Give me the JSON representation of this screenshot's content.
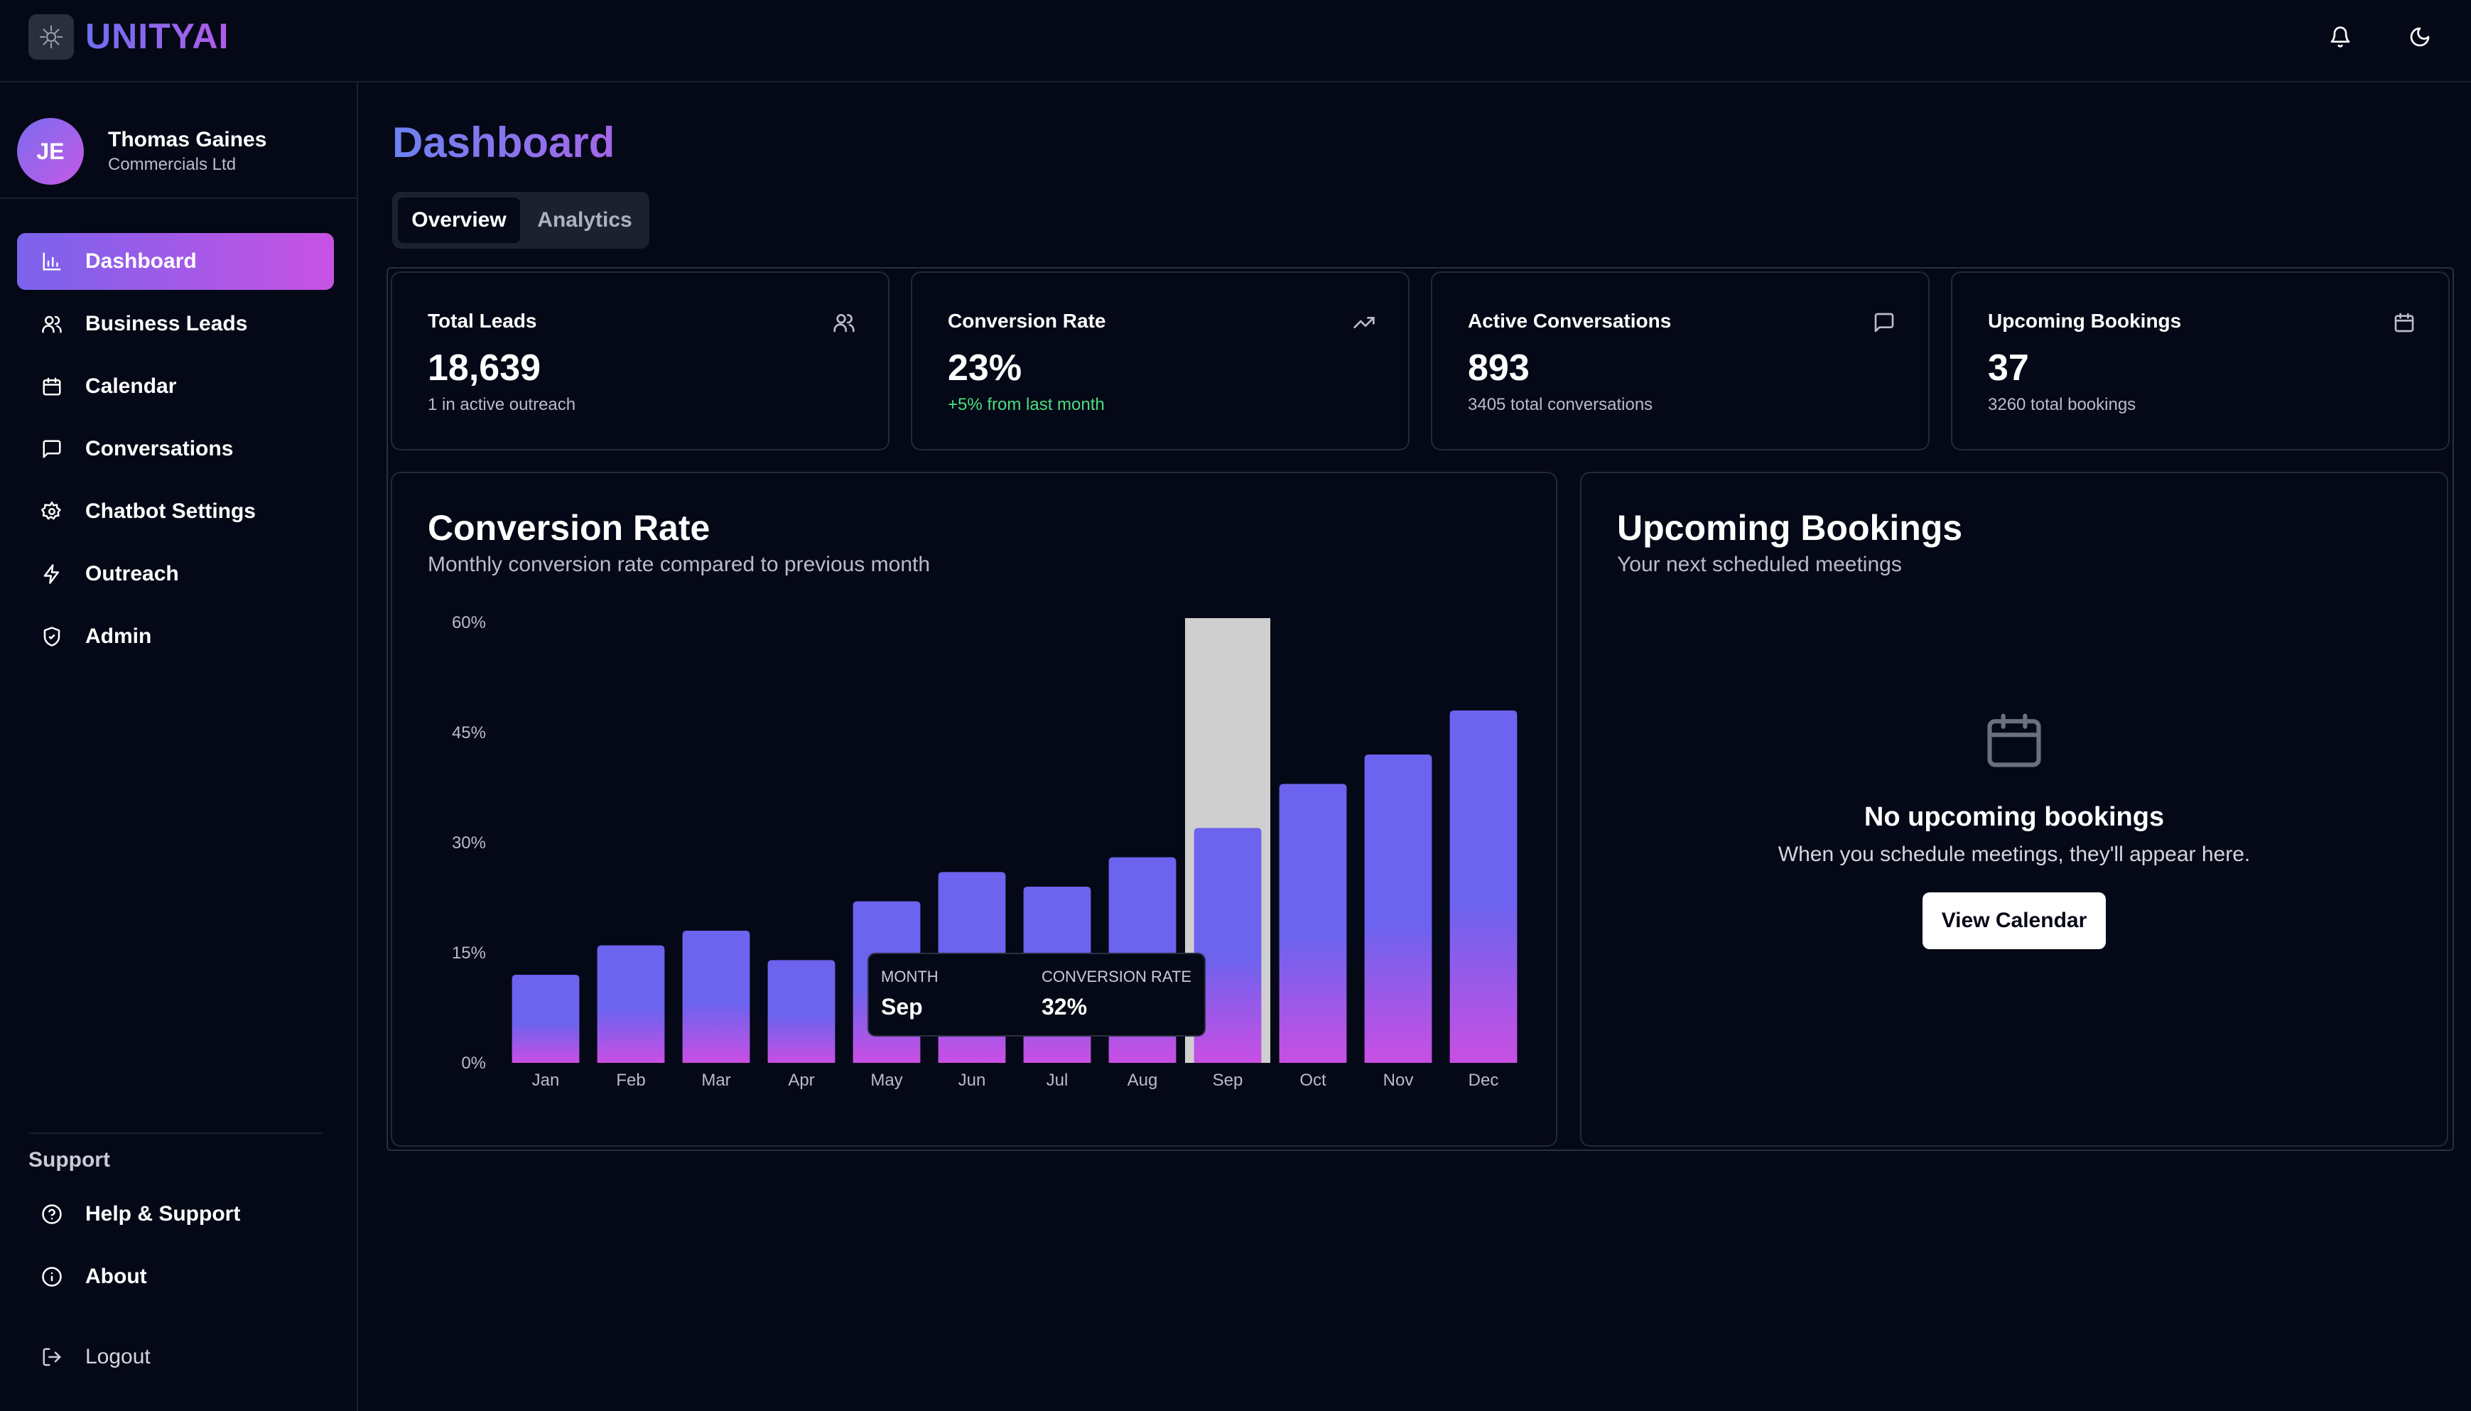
{
  "app": {
    "name": "UNITYAI"
  },
  "topbar": {
    "notification_icon": "bell-icon",
    "theme_icon": "moon-icon"
  },
  "user": {
    "initials": "JE",
    "name": "Thomas Gaines",
    "company": "Commercials Ltd"
  },
  "sidebar": {
    "items": [
      {
        "label": "Dashboard",
        "icon": "bar-chart-icon",
        "active": true
      },
      {
        "label": "Business Leads",
        "icon": "users-icon",
        "active": false
      },
      {
        "label": "Calendar",
        "icon": "calendar-icon",
        "active": false
      },
      {
        "label": "Conversations",
        "icon": "message-icon",
        "active": false
      },
      {
        "label": "Chatbot Settings",
        "icon": "gear-icon",
        "active": false
      },
      {
        "label": "Outreach",
        "icon": "lightning-icon",
        "active": false
      },
      {
        "label": "Admin",
        "icon": "shield-icon",
        "active": false
      }
    ],
    "support_label": "Support",
    "support_items": [
      {
        "label": "Help & Support",
        "icon": "help-icon"
      },
      {
        "label": "About",
        "icon": "info-icon"
      }
    ],
    "logout_label": "Logout"
  },
  "page": {
    "title": "Dashboard",
    "tabs": [
      {
        "label": "Overview",
        "active": true
      },
      {
        "label": "Analytics",
        "active": false
      }
    ]
  },
  "stats": [
    {
      "label": "Total Leads",
      "value": "18,639",
      "sub": "1 in active outreach",
      "icon": "users-icon"
    },
    {
      "label": "Conversion Rate",
      "value": "23%",
      "sub": "+5% from last month",
      "icon": "trending-up-icon"
    },
    {
      "label": "Active Conversations",
      "value": "893",
      "sub": "3405 total conversations",
      "icon": "message-icon"
    },
    {
      "label": "Upcoming Bookings",
      "value": "37",
      "sub": "3260 total bookings",
      "icon": "calendar-icon"
    }
  ],
  "conversion_panel": {
    "title": "Conversion Rate",
    "subtitle": "Monthly conversion rate compared to previous month"
  },
  "chart_data": {
    "type": "bar",
    "categories": [
      "Jan",
      "Feb",
      "Mar",
      "Apr",
      "May",
      "Jun",
      "Jul",
      "Aug",
      "Sep",
      "Oct",
      "Nov",
      "Dec"
    ],
    "values": [
      12,
      16,
      18,
      14,
      22,
      26,
      24,
      28,
      32,
      38,
      42,
      48
    ],
    "ylim": [
      0,
      60
    ],
    "yticks": [
      "0%",
      "15%",
      "30%",
      "45%",
      "60%"
    ],
    "ytick_values": [
      0,
      15,
      30,
      45,
      60
    ],
    "colors": {
      "bar_top": "#6c63ee",
      "bar_bottom": "#c94fe3",
      "highlight": "#cfcfcf"
    },
    "highlighted_category": "Sep",
    "tooltip": {
      "month_label": "MONTH",
      "month_value": "Sep",
      "rate_label": "CONVERSION RATE",
      "rate_value": "32%"
    }
  },
  "bookings_panel": {
    "title": "Upcoming Bookings",
    "subtitle": "Your next scheduled meetings",
    "empty_icon": "calendar-icon",
    "empty_title": "No upcoming bookings",
    "empty_sub": "When you schedule meetings, they'll appear here.",
    "button_label": "View Calendar"
  }
}
